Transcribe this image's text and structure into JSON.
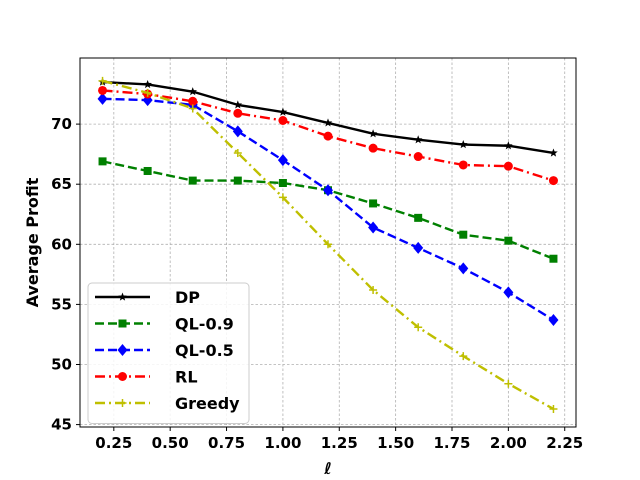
{
  "chart_data": {
    "type": "line",
    "xlabel": "ℓ",
    "ylabel": "Average Profit",
    "xlim": [
      0.1,
      2.3
    ],
    "ylim": [
      44.8,
      75.5
    ],
    "xticks": [
      0.25,
      0.5,
      0.75,
      1.0,
      1.25,
      1.5,
      1.75,
      2.0,
      2.25
    ],
    "xtick_labels": [
      "0.25",
      "0.50",
      "0.75",
      "1.00",
      "1.25",
      "1.50",
      "1.75",
      "2.00",
      "2.25"
    ],
    "yticks": [
      45,
      50,
      55,
      60,
      65,
      70
    ],
    "ytick_labels": [
      "45",
      "50",
      "55",
      "60",
      "65",
      "70"
    ],
    "grid": true,
    "legend_position": "lower-left",
    "x": [
      0.2,
      0.4,
      0.6,
      0.8,
      1.0,
      1.2,
      1.4,
      1.6,
      1.8,
      2.0,
      2.2
    ],
    "series": [
      {
        "name": "DP",
        "color": "#000000",
        "marker": "star",
        "linestyle": "solid",
        "values": [
          73.5,
          73.3,
          72.7,
          71.6,
          71.0,
          70.1,
          69.2,
          68.7,
          68.3,
          68.2,
          67.6
        ]
      },
      {
        "name": "QL-0.9",
        "color": "#008000",
        "marker": "square",
        "linestyle": "dashed",
        "values": [
          66.9,
          66.1,
          65.3,
          65.3,
          65.1,
          64.5,
          63.4,
          62.2,
          60.8,
          60.3,
          58.8
        ]
      },
      {
        "name": "QL-0.5",
        "color": "#0000ff",
        "marker": "diamond",
        "linestyle": "dashed",
        "values": [
          72.1,
          72.0,
          71.6,
          69.4,
          67.0,
          64.5,
          61.4,
          59.7,
          58.0,
          56.0,
          53.7
        ]
      },
      {
        "name": "RL",
        "color": "#ff0000",
        "marker": "circle",
        "linestyle": "dashdot",
        "values": [
          72.8,
          72.5,
          71.9,
          70.9,
          70.3,
          69.0,
          68.0,
          67.3,
          66.6,
          66.5,
          65.3
        ]
      },
      {
        "name": "Greedy",
        "color": "#bfbf00",
        "marker": "plus",
        "linestyle": "dashdot",
        "values": [
          73.6,
          72.6,
          71.3,
          67.6,
          63.9,
          60.0,
          56.2,
          53.1,
          50.7,
          48.4,
          46.3
        ]
      }
    ]
  }
}
